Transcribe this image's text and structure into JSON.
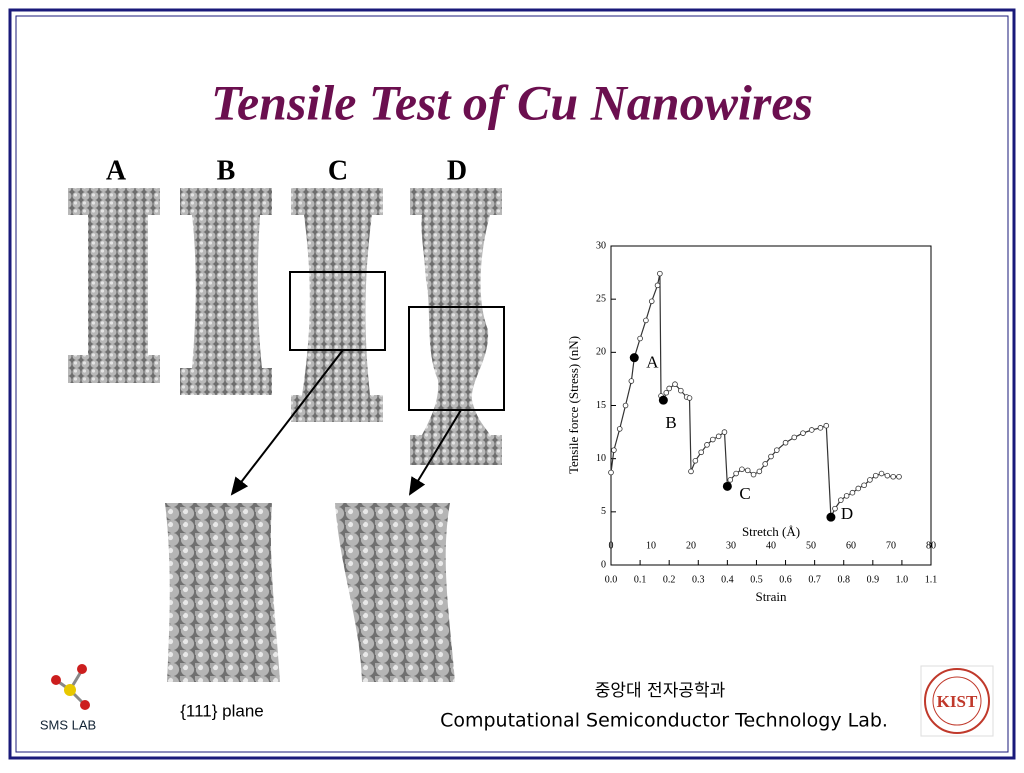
{
  "slide": {
    "title": "Tensile Test of Cu Nanowires",
    "panel_labels": [
      "A",
      "B",
      "C",
      "D"
    ],
    "zoom_caption": "{111} plane",
    "footer_korean": "중앙대 전자공학과",
    "footer_lab": "Computational Semiconductor Technology Lab.",
    "left_logo": "SMS LAB",
    "right_logo": "KIST"
  },
  "chart_data": {
    "type": "line",
    "xlabel": "Strain",
    "ylabel": "Tensile force (Stress) (nN)",
    "x2label": "Stretch (Å)",
    "xlim": [
      0,
      1.1
    ],
    "ylim": [
      0,
      30
    ],
    "x2lim": [
      0,
      80
    ],
    "xticks": [
      {
        "value": 0,
        "label": "0.0"
      },
      0.1,
      0.2,
      0.3,
      0.4,
      0.5,
      0.6,
      0.7,
      0.8,
      0.9,
      {
        "value": 1,
        "label": "1.0"
      },
      1.1
    ],
    "yticks": [
      0,
      5,
      10,
      15,
      20,
      25,
      30
    ],
    "x2ticks": [
      0,
      10,
      20,
      30,
      40,
      50,
      60,
      70,
      80
    ],
    "series": [
      {
        "color": "#333333",
        "x": [
          0.0,
          0.01,
          0.03,
          0.05,
          0.07,
          0.08,
          0.1,
          0.12,
          0.14,
          0.16,
          0.168,
          0.172,
          0.18,
          0.19,
          0.2,
          0.22,
          0.24,
          0.26,
          0.27,
          0.275,
          0.29,
          0.31,
          0.33,
          0.35,
          0.37,
          0.39,
          0.4,
          0.41,
          0.43,
          0.45,
          0.47,
          0.49,
          0.51,
          0.53,
          0.55,
          0.57,
          0.6,
          0.63,
          0.66,
          0.69,
          0.72,
          0.74,
          0.756,
          0.77,
          0.79,
          0.81,
          0.83,
          0.85,
          0.87,
          0.89,
          0.91,
          0.93,
          0.95,
          0.97,
          0.99
        ],
        "values": [
          8.7,
          10.8,
          12.8,
          15,
          17.3,
          19.5,
          21.3,
          23,
          24.8,
          26.3,
          27.4,
          15.9,
          15.5,
          16.2,
          16.6,
          17.0,
          16.4,
          15.8,
          15.7,
          8.8,
          9.8,
          10.6,
          11.3,
          11.8,
          12.1,
          12.5,
          7.4,
          8.0,
          8.6,
          9.0,
          8.9,
          8.5,
          8.8,
          9.5,
          10.2,
          10.8,
          11.5,
          12.0,
          12.4,
          12.7,
          12.9,
          13.1,
          4.5,
          5.3,
          6.1,
          6.5,
          6.8,
          7.2,
          7.5,
          8.0,
          8.4,
          8.6,
          8.4,
          8.3,
          8.3
        ]
      }
    ],
    "annotations": [
      {
        "label": "A",
        "x": 0.08,
        "y": 19.5
      },
      {
        "label": "B",
        "x": 0.18,
        "y": 15.5
      },
      {
        "label": "C",
        "x": 0.4,
        "y": 7.4
      },
      {
        "label": "D",
        "x": 0.756,
        "y": 4.5
      }
    ]
  }
}
